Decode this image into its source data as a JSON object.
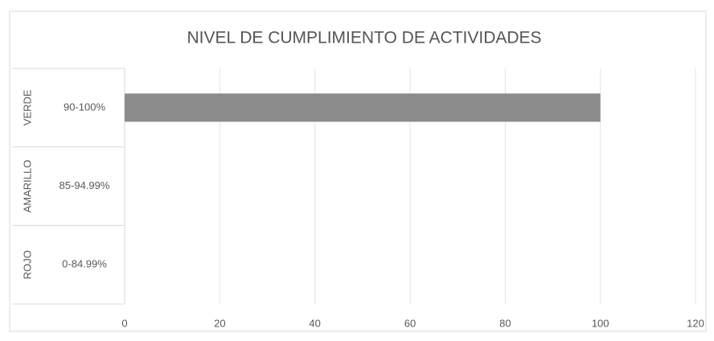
{
  "chart_data": {
    "type": "bar",
    "orientation": "horizontal",
    "title": "NIVEL DE CUMPLIMIENTO DE ACTIVIDADES",
    "groups": [
      "VERDE",
      "AMARILLO",
      "ROJO"
    ],
    "categories": [
      "90-100%",
      "85-94.99%",
      "0-84.99%"
    ],
    "values": [
      100,
      0,
      0
    ],
    "color": "#8c8c8c",
    "xlim": [
      0,
      120
    ],
    "xticks": [
      0,
      20,
      40,
      60,
      80,
      100,
      120
    ],
    "grid": true
  }
}
